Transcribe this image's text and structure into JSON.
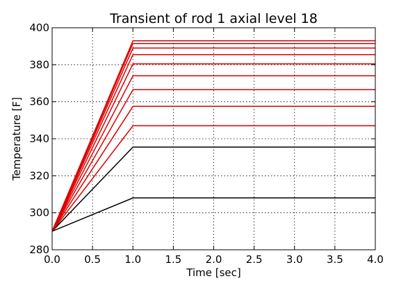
{
  "chart_data": {
    "type": "line",
    "title": "Transient of rod 1 axial level 18",
    "xlabel": "Time [sec]",
    "ylabel": "Temperature [F]",
    "xlim": [
      0.0,
      4.0
    ],
    "ylim": [
      280,
      400
    ],
    "grid": true,
    "x_ticks": [
      "0.0",
      "0.5",
      "1.0",
      "1.5",
      "2.0",
      "2.5",
      "3.0",
      "3.5",
      "4.0"
    ],
    "y_ticks": [
      "280",
      "300",
      "320",
      "340",
      "360",
      "380",
      "400"
    ],
    "x": [
      0.0,
      1.0,
      4.0
    ],
    "series": [
      {
        "color": "#000000",
        "values": [
          290,
          308,
          308
        ]
      },
      {
        "color": "#000000",
        "values": [
          290,
          335.5,
          335.5
        ]
      },
      {
        "color": "#dd0000",
        "values": [
          290,
          347,
          347
        ]
      },
      {
        "color": "#dd0000",
        "values": [
          290,
          357.5,
          357.5
        ]
      },
      {
        "color": "#dd0000",
        "values": [
          290,
          366.5,
          366.5
        ]
      },
      {
        "color": "#dd0000",
        "values": [
          290,
          374,
          374
        ]
      },
      {
        "color": "#dd0000",
        "values": [
          290,
          380.5,
          380.5
        ]
      },
      {
        "color": "#dd0000",
        "values": [
          290,
          385.5,
          385.5
        ]
      },
      {
        "color": "#dd0000",
        "values": [
          290,
          389,
          389
        ]
      },
      {
        "color": "#dd0000",
        "values": [
          290,
          391.5,
          391.5
        ]
      },
      {
        "color": "#dd0000",
        "values": [
          290,
          393,
          393
        ]
      }
    ]
  }
}
